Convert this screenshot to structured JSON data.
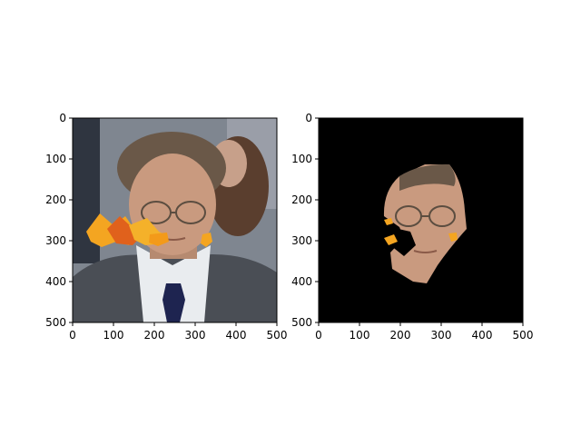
{
  "figure": {
    "background": "#ffffff"
  },
  "chart_data": [
    {
      "type": "image",
      "id": "left",
      "content": "original photo: man in glasses, grey suit, navy tie, with autumn-leaf occluders over lower-left face",
      "xlim": [
        0,
        500
      ],
      "ylim": [
        500,
        0
      ],
      "xticks": [
        0,
        100,
        200,
        300,
        400,
        500
      ],
      "yticks": [
        0,
        100,
        200,
        300,
        400,
        500
      ],
      "xtick_labels": [
        "0",
        "100",
        "200",
        "300",
        "400",
        "500"
      ],
      "ytick_labels": [
        "0",
        "100",
        "200",
        "300",
        "400",
        "500"
      ],
      "title": "",
      "xlabel": "",
      "ylabel": ""
    },
    {
      "type": "image",
      "id": "right",
      "content": "segmented face on black background with small leaf fragments",
      "xlim": [
        0,
        500
      ],
      "ylim": [
        500,
        0
      ],
      "xticks": [
        0,
        100,
        200,
        300,
        400,
        500
      ],
      "yticks": [
        0,
        100,
        200,
        300,
        400,
        500
      ],
      "xtick_labels": [
        "0",
        "100",
        "200",
        "300",
        "400",
        "500"
      ],
      "ytick_labels": [
        "0",
        "100",
        "200",
        "300",
        "400",
        "500"
      ],
      "title": "",
      "xlabel": "",
      "ylabel": ""
    }
  ],
  "colors": {
    "wall": "#7f8690",
    "suit": "#4a4e55",
    "shirt": "#e9ecef",
    "tie": "#1e2450",
    "skin": "#c99a7f",
    "hair": "#6a5848",
    "leaf_a": "#f4a521",
    "leaf_b": "#e0611c",
    "mask": "#000000"
  }
}
